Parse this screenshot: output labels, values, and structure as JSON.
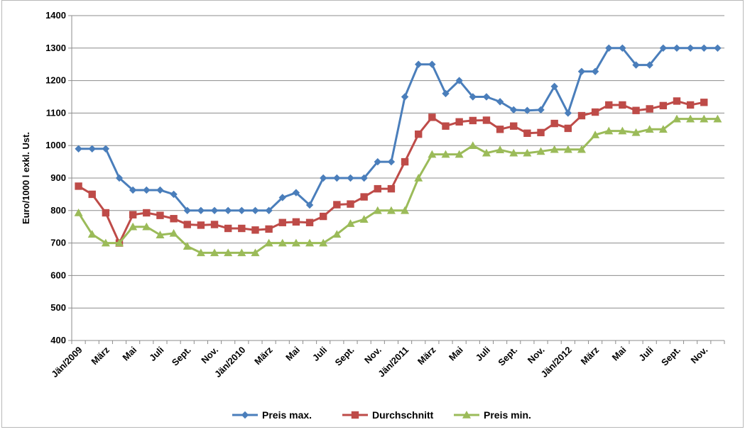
{
  "chart_data": {
    "type": "line",
    "title": "",
    "xlabel": "",
    "ylabel": "Euro/1000 l exkl. Ust.",
    "ylim": [
      400,
      1400
    ],
    "yticks": [
      400,
      500,
      600,
      700,
      800,
      900,
      1000,
      1100,
      1200,
      1300,
      1400
    ],
    "grid": "horizontal",
    "legend_position": "bottom",
    "tick_labels": [
      {
        "index": 0,
        "label": "Jän/2009"
      },
      {
        "index": 2,
        "label": "März"
      },
      {
        "index": 4,
        "label": "Mai"
      },
      {
        "index": 6,
        "label": "Juli"
      },
      {
        "index": 8,
        "label": "Sept."
      },
      {
        "index": 10,
        "label": "Nov."
      },
      {
        "index": 12,
        "label": "Jän/2010"
      },
      {
        "index": 14,
        "label": "März"
      },
      {
        "index": 16,
        "label": "Mai"
      },
      {
        "index": 18,
        "label": "Juli"
      },
      {
        "index": 20,
        "label": "Sept."
      },
      {
        "index": 22,
        "label": "Nov."
      },
      {
        "index": 24,
        "label": "Jän/2011"
      },
      {
        "index": 26,
        "label": "März"
      },
      {
        "index": 28,
        "label": "Mai"
      },
      {
        "index": 30,
        "label": "Juli"
      },
      {
        "index": 32,
        "label": "Sept."
      },
      {
        "index": 34,
        "label": "Nov."
      },
      {
        "index": 36,
        "label": "Jän/2012"
      },
      {
        "index": 38,
        "label": "März"
      },
      {
        "index": 40,
        "label": "Mai"
      },
      {
        "index": 42,
        "label": "Juli"
      },
      {
        "index": 44,
        "label": "Sept."
      },
      {
        "index": 46,
        "label": "Nov."
      }
    ],
    "category_count": 48,
    "series": [
      {
        "name": "Preis max.",
        "color": "#4A7EBB",
        "marker": "diamond",
        "values": [
          990,
          990,
          990,
          900,
          863,
          863,
          863,
          850,
          800,
          800,
          800,
          800,
          800,
          800,
          800,
          840,
          855,
          817,
          900,
          900,
          900,
          900,
          950,
          950,
          1150,
          1250,
          1250,
          1160,
          1200,
          1150,
          1150,
          1135,
          1110,
          1108,
          1110,
          1182,
          1100,
          1228,
          1228,
          1300,
          1300,
          1248,
          1248,
          1300,
          1300,
          1300,
          1300,
          1300
        ]
      },
      {
        "name": "Durchschnitt",
        "color": "#BE4B48",
        "marker": "square",
        "values": [
          875,
          850,
          793,
          700,
          787,
          793,
          785,
          775,
          757,
          755,
          757,
          745,
          745,
          740,
          743,
          763,
          765,
          763,
          782,
          818,
          820,
          842,
          867,
          867,
          950,
          1035,
          1087,
          1060,
          1073,
          1077,
          1078,
          1050,
          1060,
          1038,
          1040,
          1068,
          1053,
          1092,
          1103,
          1125,
          1125,
          1108,
          1113,
          1123,
          1137,
          1125,
          1133,
          null
        ]
      },
      {
        "name": "Preis min.",
        "color": "#9BBB59",
        "marker": "triangle",
        "values": [
          793,
          727,
          700,
          700,
          750,
          750,
          725,
          730,
          690,
          670,
          670,
          670,
          670,
          670,
          700,
          700,
          700,
          700,
          700,
          727,
          760,
          773,
          800,
          800,
          800,
          900,
          973,
          973,
          973,
          1000,
          977,
          987,
          977,
          977,
          982,
          988,
          988,
          988,
          1033,
          1045,
          1045,
          1040,
          1050,
          1050,
          1082,
          1082,
          1082,
          1082
        ]
      }
    ]
  }
}
